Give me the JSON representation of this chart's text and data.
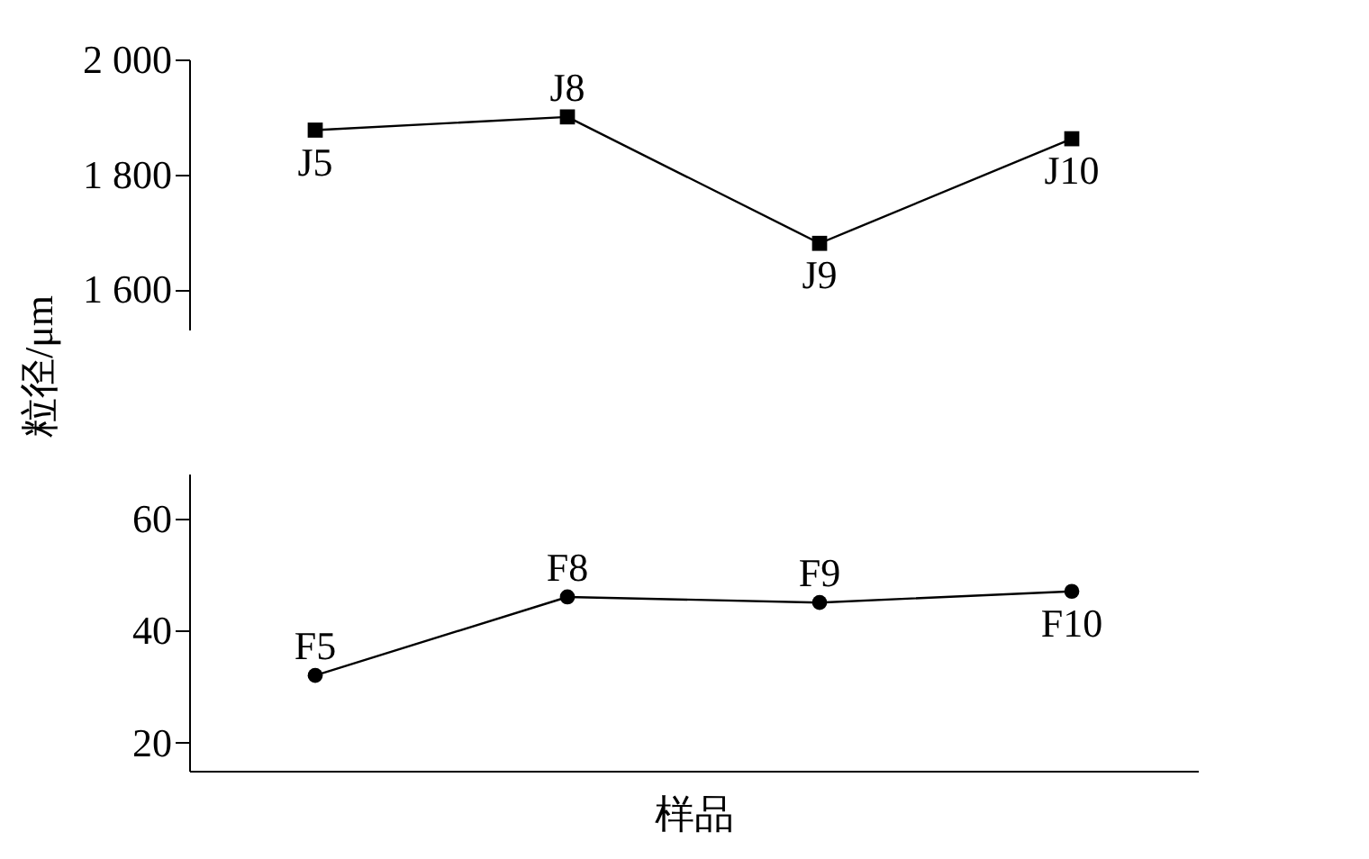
{
  "chart_data": [
    {
      "type": "line",
      "ylabel": "粒径/μm",
      "categories": [
        null,
        null,
        null,
        null
      ],
      "tick_labels": "y",
      "marker": "square",
      "line_style": "solid",
      "grid": false,
      "series": [
        {
          "color": "#000000",
          "values": [
            1877,
            1900,
            1680,
            1862
          ],
          "value_labels": [
            "J5",
            "J8",
            "J9",
            "J10"
          ]
        }
      ],
      "ylim": [
        1530,
        2000
      ],
      "yticks": [
        {
          "value": 1600,
          "label": "1 600"
        },
        {
          "value": 1800,
          "label": "1 800"
        },
        {
          "value": 2000,
          "label": "2 000"
        }
      ]
    },
    {
      "type": "line",
      "xlabel": "样品",
      "categories": [
        null,
        null,
        null,
        null
      ],
      "tick_labels": "y",
      "marker": "circle",
      "line_style": "solid",
      "grid": false,
      "series": [
        {
          "color": "#000000",
          "values": [
            32,
            46,
            45,
            47
          ],
          "value_labels": [
            "F5",
            "F8",
            "F9",
            "F10"
          ]
        }
      ],
      "ylim": [
        15,
        68
      ],
      "yticks": [
        20,
        40,
        60
      ]
    }
  ]
}
